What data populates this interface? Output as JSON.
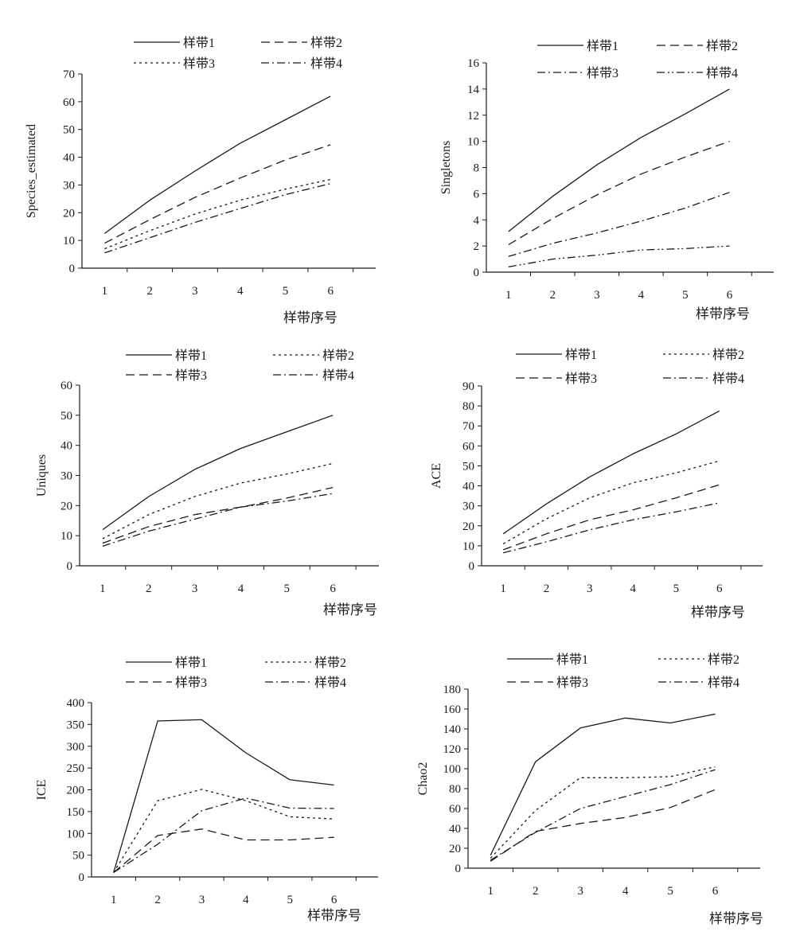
{
  "chart_data": [
    {
      "type": "line",
      "ylabel": "Species_estimated",
      "xlabel": "样带序号",
      "ylim": [
        0,
        70
      ],
      "yticks": [
        0,
        10,
        20,
        30,
        40,
        50,
        60,
        70
      ],
      "x": [
        1,
        2,
        3,
        4,
        5,
        6
      ],
      "legend_placement": "top",
      "series": [
        {
          "name": "样带1",
          "style": "solid",
          "values": [
            12.5,
            24.5,
            35,
            45,
            53.5,
            62
          ]
        },
        {
          "name": "样带2",
          "style": "dashed",
          "values": [
            9,
            17.5,
            25.5,
            32.5,
            39,
            44.5
          ]
        },
        {
          "name": "样带3",
          "style": "dotted",
          "values": [
            7,
            13.5,
            19.5,
            24.5,
            28.5,
            32
          ]
        },
        {
          "name": "样带4",
          "style": "dashdot",
          "values": [
            5.5,
            11,
            16.5,
            21.5,
            26.5,
            30.5
          ]
        }
      ]
    },
    {
      "type": "line",
      "ylabel": "Singletons",
      "xlabel": "样带序号",
      "ylim": [
        0,
        16
      ],
      "yticks": [
        0,
        2,
        4,
        6,
        8,
        10,
        12,
        14,
        16
      ],
      "x": [
        1,
        2,
        3,
        4,
        5,
        6
      ],
      "legend_placement": "top",
      "series": [
        {
          "name": "样带1",
          "style": "solid",
          "values": [
            3.1,
            5.8,
            8.2,
            10.3,
            12.1,
            14
          ]
        },
        {
          "name": "样带2",
          "style": "dashed",
          "values": [
            2.1,
            4.1,
            5.9,
            7.5,
            8.8,
            10
          ]
        },
        {
          "name": "样带3",
          "style": "dashdot",
          "values": [
            1.2,
            2.2,
            3,
            3.9,
            4.9,
            6.1
          ]
        },
        {
          "name": "样带4",
          "style": "dashdotdot",
          "values": [
            0.4,
            1,
            1.3,
            1.7,
            1.8,
            2
          ]
        }
      ]
    },
    {
      "type": "line",
      "ylabel": "Uniques",
      "xlabel": "样带序号",
      "ylim": [
        0,
        60
      ],
      "yticks": [
        0,
        10,
        20,
        30,
        40,
        50,
        60
      ],
      "x": [
        1,
        2,
        3,
        4,
        5,
        6
      ],
      "legend_placement": "top",
      "series": [
        {
          "name": "样带1",
          "style": "solid",
          "values": [
            12,
            23,
            32,
            39,
            44.5,
            50
          ]
        },
        {
          "name": "样带2",
          "style": "dotted",
          "values": [
            9,
            17,
            23,
            27.5,
            30.5,
            34
          ]
        },
        {
          "name": "样带3",
          "style": "dashed",
          "values": [
            7.5,
            13,
            17,
            19.5,
            22.5,
            26
          ]
        },
        {
          "name": "样带4",
          "style": "dashdot",
          "values": [
            6.5,
            11.5,
            15.5,
            19.5,
            21.5,
            24
          ]
        }
      ]
    },
    {
      "type": "line",
      "ylabel": "ACE",
      "xlabel": "样带序号",
      "ylim": [
        0,
        90
      ],
      "yticks": [
        0,
        10,
        20,
        30,
        40,
        50,
        60,
        70,
        80,
        90
      ],
      "x": [
        1,
        2,
        3,
        4,
        5,
        6
      ],
      "legend_placement": "top",
      "series": [
        {
          "name": "样带1",
          "style": "solid",
          "values": [
            16,
            31,
            44.5,
            56,
            66,
            77.5
          ]
        },
        {
          "name": "样带2",
          "style": "dotted",
          "values": [
            11,
            23.5,
            34,
            41.5,
            46.5,
            52.5
          ]
        },
        {
          "name": "样带3",
          "style": "dashed",
          "values": [
            8,
            16,
            23,
            28,
            34,
            40.5
          ]
        },
        {
          "name": "样带4",
          "style": "dashdot",
          "values": [
            6.5,
            12,
            18,
            23,
            27,
            31.5
          ]
        }
      ]
    },
    {
      "type": "line",
      "ylabel": "ICE",
      "xlabel": "样带序号",
      "ylim": [
        0,
        400
      ],
      "yticks": [
        0,
        50,
        100,
        150,
        200,
        250,
        300,
        350,
        400
      ],
      "x": [
        1,
        2,
        3,
        4,
        5,
        6
      ],
      "legend_placement": "top",
      "series": [
        {
          "name": "样带1",
          "style": "solid",
          "values": [
            10,
            358,
            361,
            285,
            223,
            211
          ]
        },
        {
          "name": "样带2",
          "style": "dotted",
          "values": [
            10,
            175,
            201,
            175,
            138,
            133
          ]
        },
        {
          "name": "样带3",
          "style": "dashed",
          "values": [
            10,
            95,
            110,
            85,
            85,
            91
          ]
        },
        {
          "name": "样带4",
          "style": "dashdot",
          "values": [
            10,
            75,
            152,
            181,
            158,
            157
          ]
        }
      ]
    },
    {
      "type": "line",
      "ylabel": "Chao2",
      "xlabel": "样带序号",
      "ylim": [
        0,
        180
      ],
      "yticks": [
        0,
        20,
        40,
        60,
        80,
        100,
        120,
        140,
        160,
        180
      ],
      "x": [
        1,
        2,
        3,
        4,
        5,
        6
      ],
      "legend_placement": "top",
      "series": [
        {
          "name": "样带1",
          "style": "solid",
          "values": [
            13,
            107,
            141,
            151,
            146,
            155
          ]
        },
        {
          "name": "样带2",
          "style": "dotted",
          "values": [
            10,
            58,
            91,
            91,
            92,
            102
          ]
        },
        {
          "name": "样带3",
          "style": "dashed",
          "values": [
            7,
            37,
            45,
            51,
            61,
            79
          ]
        },
        {
          "name": "样带4",
          "style": "dashdot",
          "values": [
            8,
            36,
            60,
            72,
            84,
            99
          ]
        }
      ]
    }
  ]
}
